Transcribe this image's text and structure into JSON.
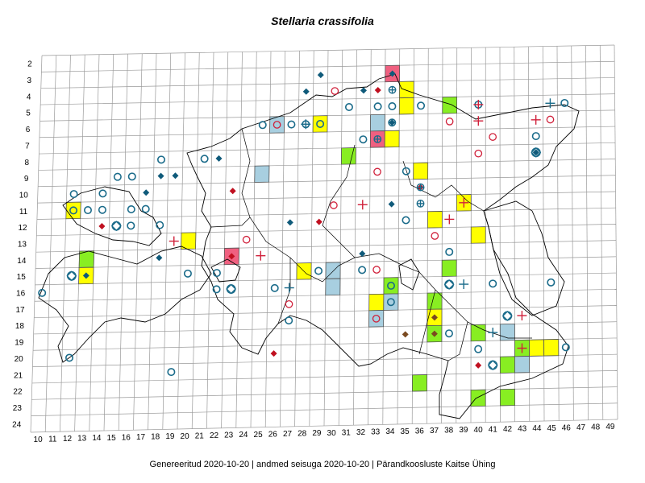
{
  "title": "Stellaria crassifolia",
  "footer": {
    "generated": "Genereeritud 2020-10-20",
    "sep1": "|",
    "data_state": "andmed seisuga 2020-10-20",
    "sep2": "|",
    "org": "Pärandkoosluste Kaitse Ühing"
  },
  "grid": {
    "col_labels": [
      "10",
      "11",
      "12",
      "13",
      "14",
      "15",
      "16",
      "17",
      "18",
      "19",
      "20",
      "21",
      "22",
      "23",
      "24",
      "25",
      "26",
      "27",
      "28",
      "29",
      "30",
      "31",
      "32",
      "33",
      "34",
      "35",
      "36",
      "37",
      "38",
      "39",
      "40",
      "41",
      "42",
      "43",
      "44",
      "45",
      "46",
      "47",
      "48",
      "49"
    ],
    "row_labels": [
      "2",
      "3",
      "4",
      "5",
      "6",
      "7",
      "8",
      "9",
      "10",
      "11",
      "12",
      "13",
      "14",
      "15",
      "16",
      "17",
      "18",
      "19",
      "20",
      "21",
      "22",
      "23",
      "24"
    ]
  },
  "colors": {
    "grid": "#9a9a9a",
    "outline": "#000000",
    "yellow_cell": "#ffff00",
    "green_cell": "#88ee22",
    "blue_cell": "#a8cfe0",
    "pink_cell": "#f06080",
    "circle_blue": "#1a6b8a",
    "circle_red": "#d0203a",
    "diamond_blue": "#0f5a7a",
    "diamond_red": "#c01020",
    "diamond_brown": "#7a4a20",
    "plus_red": "#d0203a",
    "plus_blue": "#1a6b8a"
  },
  "markers": {
    "cells": [
      {
        "c": 34,
        "r": 3,
        "color": "pink"
      },
      {
        "c": 35,
        "r": 4,
        "color": "yellow"
      },
      {
        "c": 35,
        "r": 5,
        "color": "yellow"
      },
      {
        "c": 38,
        "r": 5,
        "color": "green"
      },
      {
        "c": 26,
        "r": 6,
        "color": "blue"
      },
      {
        "c": 29,
        "r": 6,
        "color": "yellow"
      },
      {
        "c": 33,
        "r": 6,
        "color": "blue"
      },
      {
        "c": 33,
        "r": 7,
        "color": "pink"
      },
      {
        "c": 34,
        "r": 7,
        "color": "yellow"
      },
      {
        "c": 31,
        "r": 8,
        "color": "green"
      },
      {
        "c": 36,
        "r": 9,
        "color": "yellow"
      },
      {
        "c": 25,
        "r": 9,
        "color": "blue"
      },
      {
        "c": 12,
        "r": 11,
        "color": "yellow"
      },
      {
        "c": 39,
        "r": 11,
        "color": "yellow"
      },
      {
        "c": 37,
        "r": 12,
        "color": "yellow"
      },
      {
        "c": 20,
        "r": 13,
        "color": "yellow"
      },
      {
        "c": 40,
        "r": 13,
        "color": "yellow"
      },
      {
        "c": 13,
        "r": 14,
        "color": "green"
      },
      {
        "c": 23,
        "r": 14,
        "color": "pink"
      },
      {
        "c": 13,
        "r": 15,
        "color": "yellow"
      },
      {
        "c": 28,
        "r": 15,
        "color": "yellow"
      },
      {
        "c": 38,
        "r": 15,
        "color": "green"
      },
      {
        "c": 30,
        "r": 15,
        "color": "blue"
      },
      {
        "c": 30,
        "r": 16,
        "color": "blue"
      },
      {
        "c": 34,
        "r": 16,
        "color": "green"
      },
      {
        "c": 33,
        "r": 17,
        "color": "yellow"
      },
      {
        "c": 34,
        "r": 17,
        "color": "blue"
      },
      {
        "c": 37,
        "r": 17,
        "color": "green"
      },
      {
        "c": 33,
        "r": 18,
        "color": "blue"
      },
      {
        "c": 37,
        "r": 18,
        "color": "yellow"
      },
      {
        "c": 37,
        "r": 19,
        "color": "green"
      },
      {
        "c": 40,
        "r": 19,
        "color": "green"
      },
      {
        "c": 42,
        "r": 19,
        "color": "blue"
      },
      {
        "c": 43,
        "r": 20,
        "color": "green"
      },
      {
        "c": 44,
        "r": 20,
        "color": "yellow"
      },
      {
        "c": 45,
        "r": 20,
        "color": "yellow"
      },
      {
        "c": 42,
        "r": 21,
        "color": "green"
      },
      {
        "c": 43,
        "r": 21,
        "color": "blue"
      },
      {
        "c": 36,
        "r": 22,
        "color": "green"
      },
      {
        "c": 40,
        "r": 23,
        "color": "green"
      },
      {
        "c": 42,
        "r": 23,
        "color": "green"
      }
    ],
    "circles_blue": [
      [
        31,
        5
      ],
      [
        33,
        5
      ],
      [
        34,
        5
      ],
      [
        36,
        5
      ],
      [
        46,
        5
      ],
      [
        25,
        6
      ],
      [
        27,
        6
      ],
      [
        28,
        6
      ],
      [
        29,
        6
      ],
      [
        32,
        7
      ],
      [
        34,
        6
      ],
      [
        44,
        7
      ],
      [
        18,
        8
      ],
      [
        21,
        8
      ],
      [
        15,
        9
      ],
      [
        16,
        9
      ],
      [
        35,
        9
      ],
      [
        12,
        10
      ],
      [
        14,
        10
      ],
      [
        12,
        11
      ],
      [
        13,
        11
      ],
      [
        14,
        11
      ],
      [
        16,
        11
      ],
      [
        17,
        11
      ],
      [
        16,
        12
      ],
      [
        18,
        12
      ],
      [
        35,
        12
      ],
      [
        38,
        14
      ],
      [
        20,
        15
      ],
      [
        22,
        15
      ],
      [
        29,
        15
      ],
      [
        32,
        15
      ],
      [
        10,
        16
      ],
      [
        22,
        16
      ],
      [
        26,
        16
      ],
      [
        34,
        16
      ],
      [
        41,
        16
      ],
      [
        45,
        16
      ],
      [
        34,
        17
      ],
      [
        27,
        18
      ],
      [
        38,
        19
      ],
      [
        40,
        20
      ],
      [
        12,
        20
      ],
      [
        19,
        21
      ],
      [
        46,
        20
      ],
      [
        40,
        5
      ]
    ],
    "circles_red": [
      [
        30,
        4
      ],
      [
        26,
        6
      ],
      [
        38,
        6
      ],
      [
        41,
        7
      ],
      [
        40,
        8
      ],
      [
        33,
        9
      ],
      [
        30,
        11
      ],
      [
        24,
        13
      ],
      [
        33,
        15
      ],
      [
        27,
        17
      ],
      [
        37,
        13
      ],
      [
        33,
        18
      ],
      [
        45,
        6
      ]
    ],
    "diamonds_blue": [
      [
        29,
        3
      ],
      [
        34,
        3
      ],
      [
        28,
        4
      ],
      [
        32,
        4
      ],
      [
        34,
        6
      ],
      [
        22,
        8
      ],
      [
        18,
        9
      ],
      [
        19,
        9
      ],
      [
        17,
        10
      ],
      [
        34,
        11
      ],
      [
        27,
        12
      ],
      [
        18,
        14
      ],
      [
        32,
        14
      ],
      [
        13,
        15
      ],
      [
        44,
        8
      ]
    ],
    "diamonds_red": [
      [
        33,
        4
      ],
      [
        23,
        10
      ],
      [
        14,
        12
      ],
      [
        29,
        12
      ],
      [
        23,
        14
      ],
      [
        36,
        10
      ],
      [
        26,
        20
      ],
      [
        40,
        21
      ]
    ],
    "diamonds_brown": [
      [
        35,
        19
      ],
      [
        37,
        18
      ],
      [
        37,
        19
      ]
    ],
    "plus_red": [
      [
        40,
        5
      ],
      [
        40,
        6
      ],
      [
        44,
        6
      ],
      [
        32,
        11
      ],
      [
        39,
        11
      ],
      [
        38,
        12
      ],
      [
        19,
        13
      ],
      [
        25,
        14
      ],
      [
        43,
        18
      ],
      [
        43,
        20
      ]
    ],
    "plus_blue": [
      [
        45,
        5
      ],
      [
        27,
        16
      ],
      [
        39,
        16
      ],
      [
        41,
        19
      ],
      [
        28,
        6
      ]
    ],
    "circle_plus": [
      [
        33,
        7
      ],
      [
        36,
        10
      ],
      [
        36,
        11
      ],
      [
        34,
        4
      ]
    ],
    "diamond_circles": [
      [
        15,
        12
      ],
      [
        12,
        15
      ],
      [
        23,
        16
      ],
      [
        38,
        16
      ],
      [
        42,
        18
      ],
      [
        41,
        21
      ],
      [
        44,
        8
      ]
    ]
  }
}
